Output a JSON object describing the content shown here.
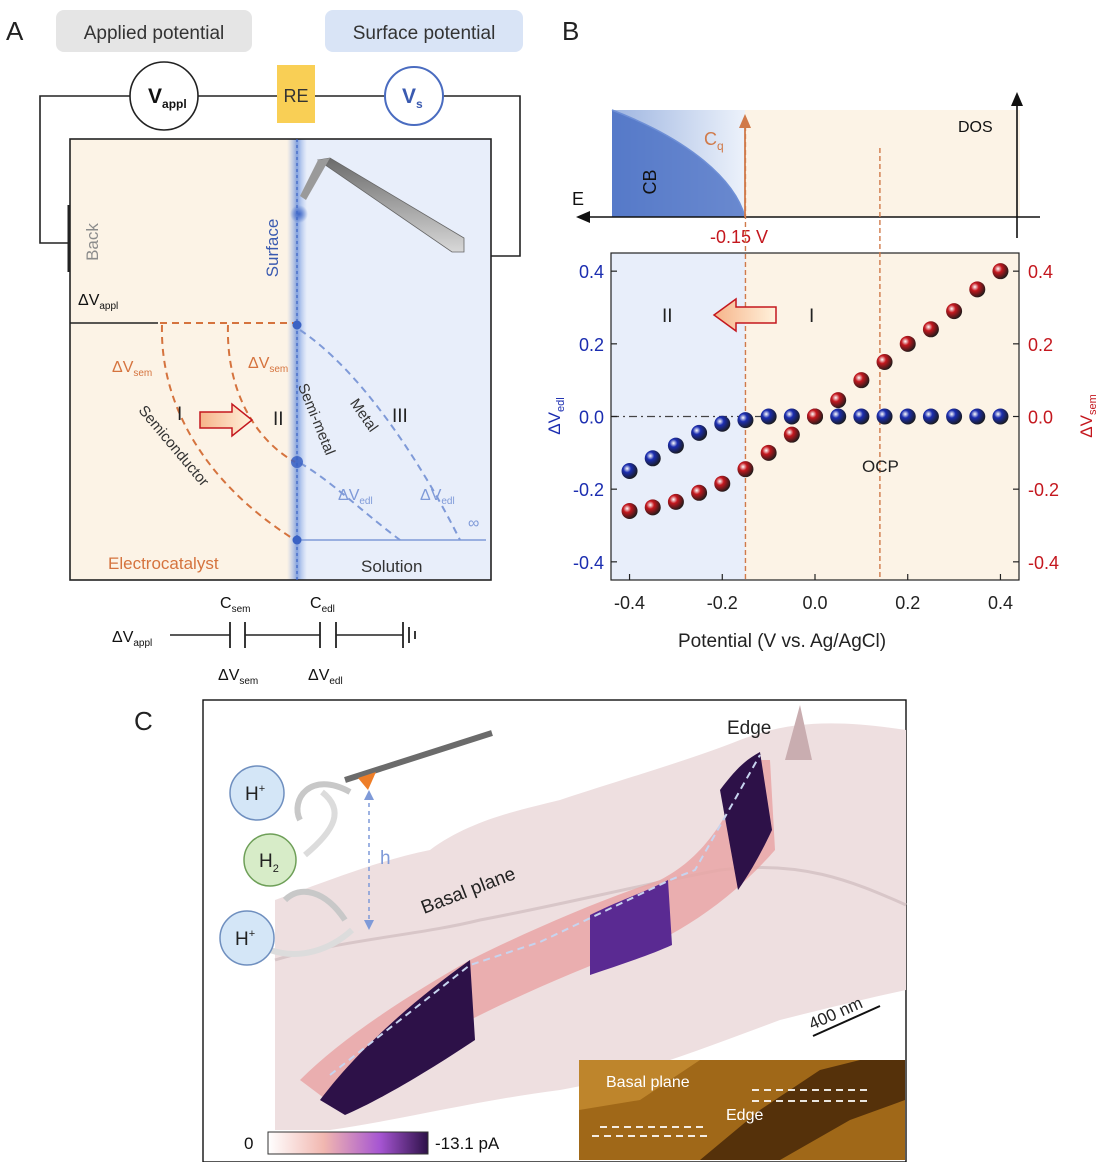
{
  "panelA": {
    "letter": "A",
    "applied_potential_label": "Applied potential",
    "surface_potential_label": "Surface potential",
    "vappl_main": "V",
    "vappl_sub": "appl",
    "re_label": "RE",
    "vs_main": "V",
    "vs_sub": "s",
    "back_label": "Back",
    "surface_label": "Surface",
    "dv_appl_main": "ΔV",
    "dv_appl_sub": "appl",
    "dv_sem_main": "ΔV",
    "dv_sem_sub": "sem",
    "dv_edl_main": "ΔV",
    "dv_edl_sub": "edl",
    "region_I": "I",
    "region_II": "II",
    "region_III": "III",
    "semiconductor_label": "Semiconductor",
    "semimetal_label": "Semi-metal",
    "metal_label": "Metal",
    "infinity_label": "∞",
    "electrocatalyst_label": "Electrocatalyst",
    "solution_label": "Solution",
    "circuit": {
      "c_sem_main": "C",
      "c_sem_sub": "sem",
      "c_edl_main": "C",
      "c_edl_sub": "edl",
      "dv_appl_main": "ΔV",
      "dv_appl_sub": "appl",
      "dv_sem_main": "ΔV",
      "dv_sem_sub": "sem",
      "dv_edl_main": "ΔV",
      "dv_edl_sub": "edl"
    },
    "colors": {
      "electrocatalyst_bg": "#fcf3e6",
      "solution_bg": "#e8eefa",
      "orange": "#d5733e",
      "blue": "#7f9ad8",
      "re_box": "#f9cf55"
    }
  },
  "panelB": {
    "letter": "B",
    "dos_label": "DOS",
    "e_label": "E",
    "cb_label": "CB",
    "cq_main": "C",
    "cq_sub": "q",
    "threshold_label": "-0.15 V",
    "region_II": "II",
    "region_I": "I",
    "ocp_label": "OCP",
    "colors": {
      "blue_series": "#1b2db0",
      "red_series": "#c4171e",
      "orange_line": "#d07a4a"
    },
    "chart_data": {
      "type": "scatter",
      "xlabel": "Potential (V vs. Ag/AgCl)",
      "ylabel_left_main": "ΔV",
      "ylabel_left_sub": "edl",
      "ylabel_right_main": "ΔV",
      "ylabel_right_sub": "sem",
      "xlim": [
        -0.44,
        0.44
      ],
      "ylim": [
        -0.45,
        0.45
      ],
      "x_ticks": [
        "-0.4",
        "-0.2",
        "0.0",
        "0.2",
        "0.4"
      ],
      "y_ticks": [
        "0.4",
        "0.2",
        "0.0",
        "-0.2",
        "-0.4"
      ],
      "threshold_x": -0.15,
      "ocp_x": 0.14,
      "series": [
        {
          "axis": "left",
          "color": "#1b2db0",
          "x": [
            -0.4,
            -0.35,
            -0.3,
            -0.25,
            -0.2,
            -0.15,
            -0.1,
            -0.05,
            0.0,
            0.05,
            0.1,
            0.15,
            0.2,
            0.25,
            0.3,
            0.35,
            0.4
          ],
          "y": [
            -0.15,
            -0.115,
            -0.08,
            -0.045,
            -0.02,
            -0.01,
            0.0,
            0.0,
            0.0,
            0.0,
            0.0,
            0.0,
            0.0,
            0.0,
            0.0,
            0.0,
            0.0
          ]
        },
        {
          "axis": "right",
          "color": "#c4171e",
          "x": [
            -0.4,
            -0.35,
            -0.3,
            -0.25,
            -0.2,
            -0.15,
            -0.1,
            -0.05,
            0.0,
            0.05,
            0.1,
            0.15,
            0.2,
            0.25,
            0.3,
            0.35,
            0.4
          ],
          "y": [
            -0.26,
            -0.25,
            -0.235,
            -0.21,
            -0.185,
            -0.145,
            -0.1,
            -0.05,
            0.0,
            0.045,
            0.1,
            0.15,
            0.2,
            0.24,
            0.29,
            0.35,
            0.4
          ]
        }
      ]
    }
  },
  "panelC": {
    "letter": "C",
    "h_plus_main": "H",
    "h_plus_sup": "+",
    "h2_main": "H",
    "h2_sub": "2",
    "h_label": "h",
    "basal_plane_label": "Basal plane",
    "edge_label": "Edge",
    "scale_bar_label": "400 nm",
    "colorbar_min": "0",
    "colorbar_max": "-13.1 pA",
    "inset_basal_label": "Basal plane",
    "inset_edge_label": "Edge",
    "colors": {
      "surface": "#eedfe0",
      "current_dark": "#2d1148",
      "current_mid": "#8a3fc8",
      "current_light": "#e9a6a6",
      "bubble_blue": "#d4e6f7",
      "bubble_green": "#d7ecc8",
      "inset_bg": "#a06818"
    }
  }
}
